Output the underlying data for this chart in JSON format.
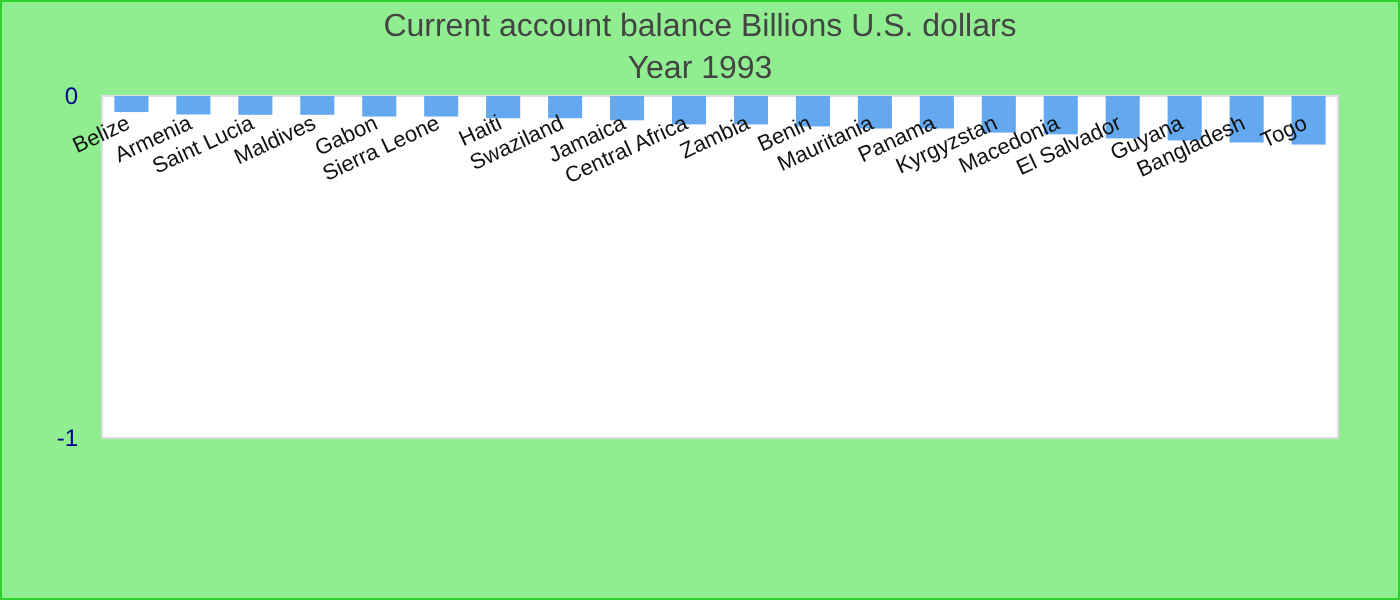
{
  "chart_data": {
    "type": "bar",
    "title": "Current account balance Billions U.S. dollars",
    "subtitle": "Year 1993",
    "categories": [
      "Belize",
      "Armenia",
      "Saint Lucia",
      "Maldives",
      "Gabon",
      "Sierra Leone",
      "Haiti",
      "Swaziland",
      "Jamaica",
      "Central Africa",
      "Zambia",
      "Benin",
      "Mauritania",
      "Panama",
      "Kyrgyzstan",
      "Macedonia",
      "El Salvador",
      "Guyana",
      "Bangladesh",
      "Togo"
    ],
    "values": [
      -0.047,
      -0.054,
      -0.055,
      -0.055,
      -0.06,
      -0.06,
      -0.065,
      -0.065,
      -0.071,
      -0.083,
      -0.083,
      -0.089,
      -0.095,
      -0.095,
      -0.107,
      -0.112,
      -0.124,
      -0.13,
      -0.136,
      -0.142
    ],
    "color": "#64a8f0",
    "ylim": [
      -1,
      0
    ],
    "yticks": [
      0,
      -1
    ],
    "grid": false
  }
}
